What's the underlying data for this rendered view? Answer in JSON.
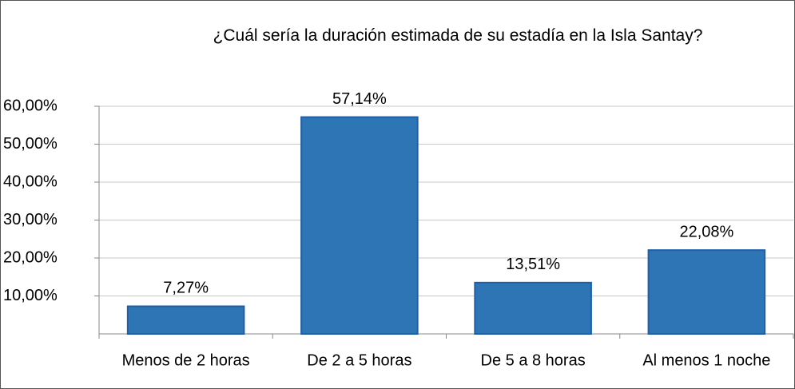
{
  "chart_data": {
    "type": "bar",
    "title": "¿Cuál sería la duración estimada de su estadía en la Isla Santay?",
    "categories": [
      "Menos de 2 horas",
      "De 2 a 5 horas",
      "De 5 a 8 horas",
      "Al menos 1 noche"
    ],
    "values": [
      7.27,
      57.14,
      13.51,
      22.08
    ],
    "value_labels": [
      "7,27%",
      "57,14%",
      "13,51%",
      "22,08%"
    ],
    "color": "#2e75b6",
    "ylim": [
      0,
      60
    ],
    "yticks": [
      {
        "value": 10,
        "label": "10,00%"
      },
      {
        "value": 20,
        "label": "20,00%"
      },
      {
        "value": 30,
        "label": "30,00%"
      },
      {
        "value": 40,
        "label": "40,00%"
      },
      {
        "value": 50,
        "label": "50,00%"
      },
      {
        "value": 60,
        "label": "60,00%"
      }
    ],
    "grid": true
  }
}
